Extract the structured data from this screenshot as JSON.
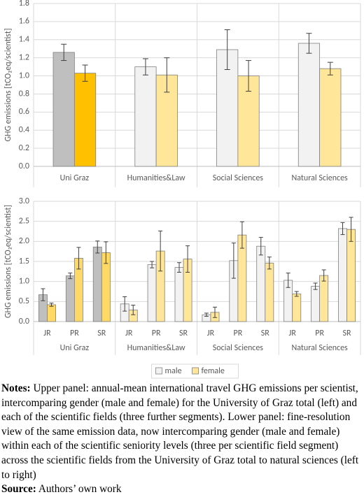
{
  "chart_data": [
    {
      "type": "bar",
      "y_label": "GHG emissions [tCO₂eq/scientist]",
      "categories": [
        "Uni Graz",
        "Humanities&Law",
        "Social Sciences",
        "Natural Sciences"
      ],
      "series": [
        {
          "color": "#f2f2f2",
          "colors": [
            "#bfbfbf",
            "#f2f2f2",
            "#f2f2f2",
            "#f2f2f2"
          ],
          "values": [
            1.26,
            1.1,
            1.29,
            1.36
          ],
          "errors": [
            0.09,
            0.09,
            0.22,
            0.11
          ]
        },
        {
          "color": "#ffe699",
          "colors": [
            "#ffc000",
            "#ffe699",
            "#ffe699",
            "#ffe699"
          ],
          "values": [
            1.03,
            1.01,
            1.0,
            1.08
          ],
          "errors": [
            0.09,
            0.19,
            0.17,
            0.07
          ]
        }
      ],
      "ylim": [
        0,
        1.8
      ],
      "yticks": [
        {
          "value": 0,
          "label": "0.0"
        },
        0.2,
        0.4,
        0.6,
        0.8,
        {
          "value": 1,
          "label": "1.0"
        },
        1.2,
        1.4,
        1.6,
        1.8
      ],
      "grid": true
    },
    {
      "type": "bar",
      "y_label": "GHG emissions [tCO₂eq/scientist]",
      "groups": [
        "Uni Graz",
        "Humanities&Law",
        "Social Sciences",
        "Natural Sciences"
      ],
      "categories": [
        "JR",
        "PR",
        "SR",
        "JR",
        "PR",
        "SR",
        "JR",
        "PR",
        "SR",
        "JR",
        "PR",
        "SR"
      ],
      "series": [
        {
          "name": "male",
          "color": "#f2f2f2",
          "colors": [
            "#bfbfbf",
            "#bfbfbf",
            "#bfbfbf",
            "#f2f2f2",
            "#f2f2f2",
            "#f2f2f2",
            "#f2f2f2",
            "#f2f2f2",
            "#f2f2f2",
            "#f2f2f2",
            "#f2f2f2",
            "#f2f2f2"
          ],
          "values": [
            0.67,
            1.14,
            1.86,
            0.44,
            1.42,
            1.35,
            0.17,
            1.52,
            1.88,
            1.03,
            0.88,
            2.32
          ],
          "errors": [
            0.15,
            0.07,
            0.15,
            0.18,
            0.08,
            0.12,
            0.04,
            0.44,
            0.22,
            0.18,
            0.08,
            0.15
          ]
        },
        {
          "name": "female",
          "color": "#ffe699",
          "colors": [
            "#ffd966",
            "#ffd966",
            "#ffd966",
            "#ffe699",
            "#ffe699",
            "#ffe699",
            "#ffe699",
            "#ffe699",
            "#ffe699",
            "#ffe699",
            "#ffe699",
            "#ffe699"
          ],
          "values": [
            0.42,
            1.58,
            1.72,
            0.29,
            1.76,
            1.56,
            0.23,
            2.16,
            1.46,
            0.69,
            1.15,
            2.3
          ],
          "errors": [
            0.04,
            0.27,
            0.27,
            0.12,
            0.5,
            0.33,
            0.13,
            0.33,
            0.15,
            0.06,
            0.14,
            0.3
          ]
        }
      ],
      "ylim": [
        0,
        3
      ],
      "yticks": [
        {
          "value": 0,
          "label": "0.0"
        },
        0.5,
        {
          "value": 1,
          "label": "1.0"
        },
        1.5,
        {
          "value": 2,
          "label": "2.0"
        },
        2.5,
        {
          "value": 3,
          "label": "3.0"
        }
      ],
      "grid": true,
      "legend": "bottom"
    }
  ],
  "notes": {
    "label": "Notes:",
    "text": " Upper panel: annual-mean international travel GHG emissions per scientist, intercomparing gender (male and female) for the University of Graz total (left) and each of the scientific fields (three further segments). Lower panel: fine-resolution view of the same emission data, now intercomparing gender (male and female) within each of the scientific seniority levels (three per scientific field segment) across the scientific fields from the University of Graz total to natural sciences (left to right)"
  },
  "source": {
    "label": "Source:",
    "text": " Authors’ own work"
  }
}
